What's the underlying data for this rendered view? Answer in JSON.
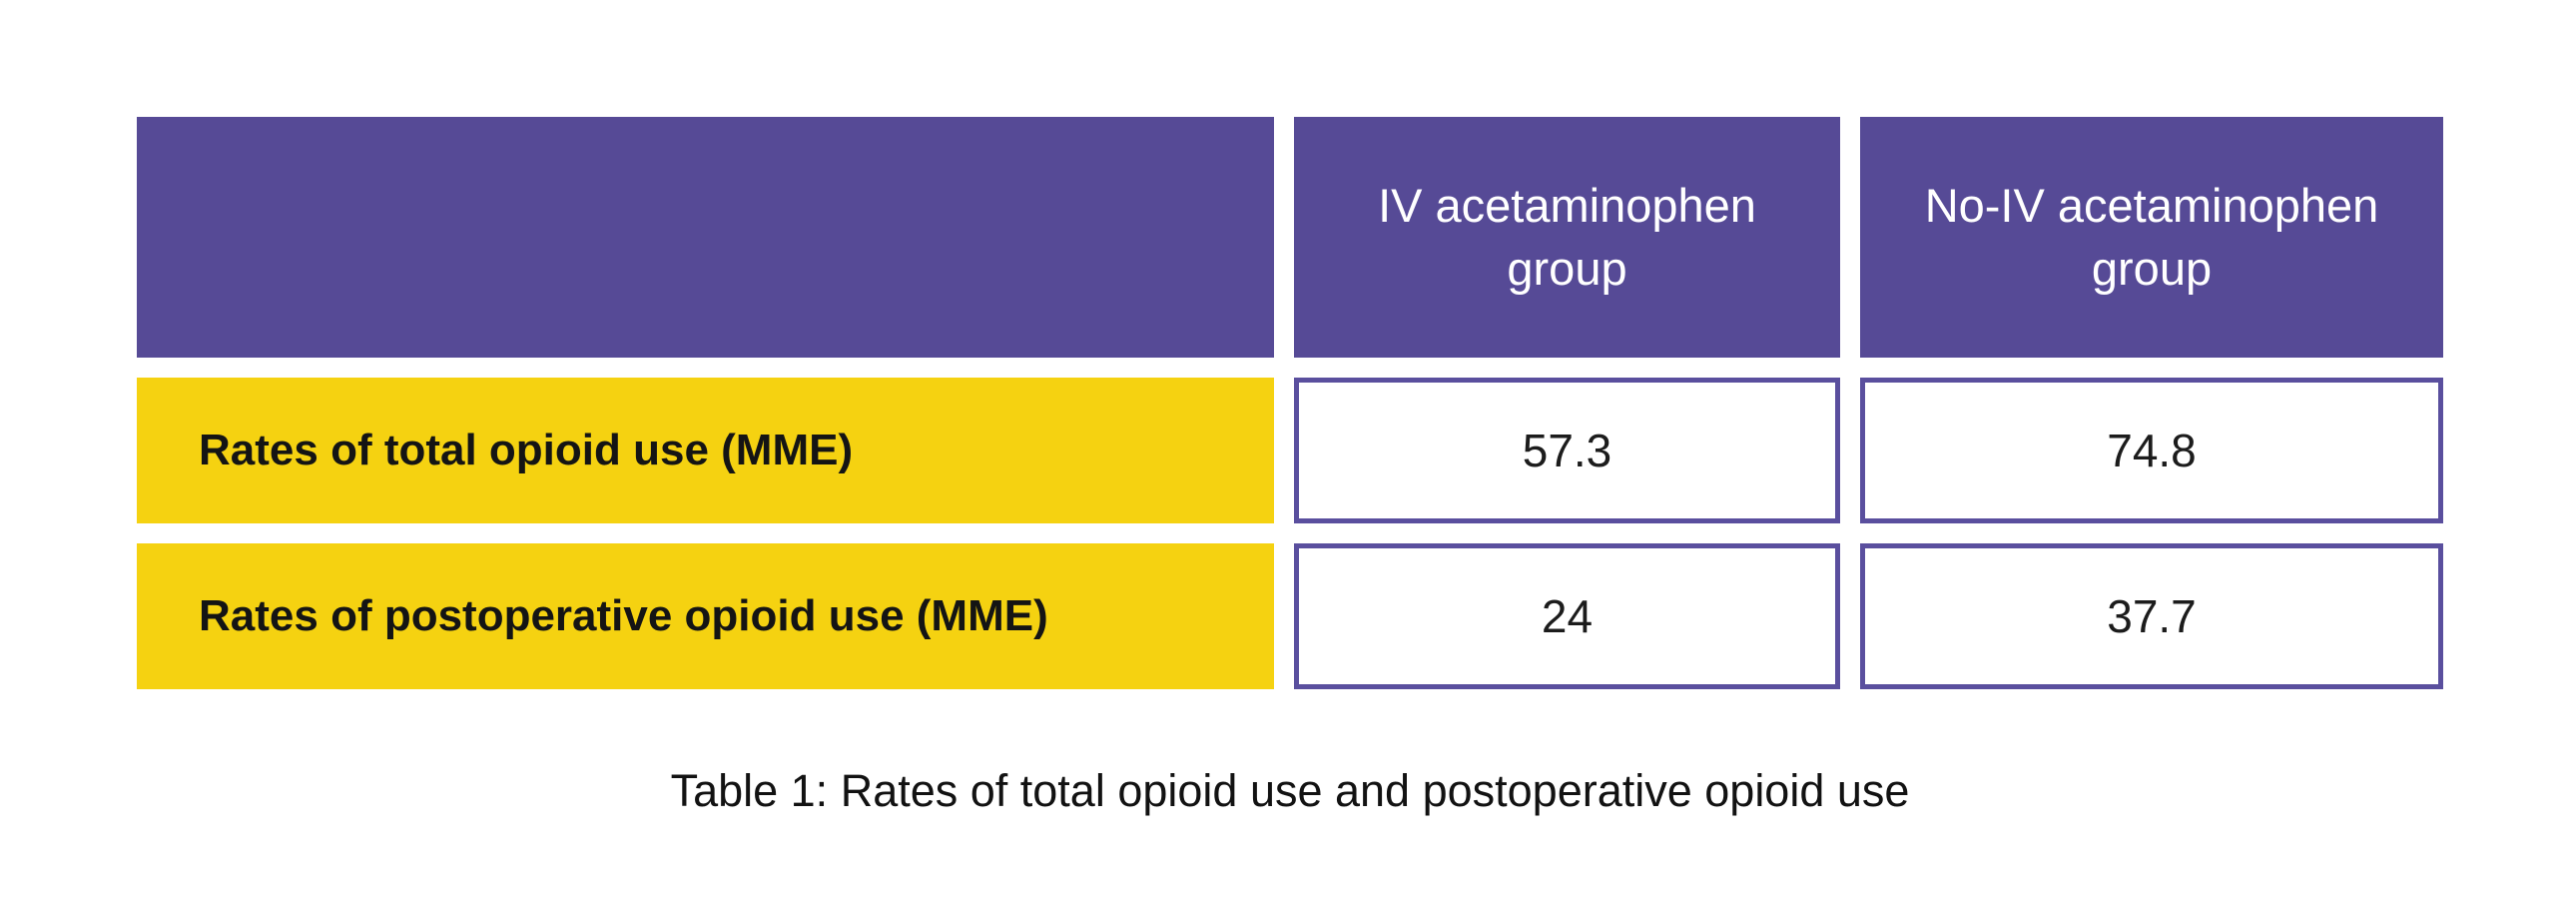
{
  "page": {
    "background": "#FFFFFF"
  },
  "colors": {
    "header_bg": "#564A96",
    "header_text": "#FFFFFF",
    "row_label_bg": "#F5D211",
    "row_label_text": "#141414",
    "value_cell_border": "#5A4F9E",
    "value_text": "#1C1C1C",
    "caption_text": "#121212"
  },
  "table": {
    "header": {
      "blank": "",
      "col1": "IV acetaminophen group",
      "col2": "No-IV acetaminophen group"
    },
    "rows": [
      {
        "label": "Rates of total opioid use (MME)",
        "values": [
          "57.3",
          "74.8"
        ]
      },
      {
        "label": "Rates of postoperative opioid use (MME)",
        "values": [
          "24",
          "37.7"
        ]
      }
    ],
    "caption": "Table 1: Rates of total opioid use and postoperative opioid use"
  },
  "chart_data": {
    "type": "table",
    "title": "Table 1: Rates of total opioid use and postoperative opioid use",
    "columns": [
      "IV acetaminophen group",
      "No-IV acetaminophen group"
    ],
    "row_labels": [
      "Rates of total opioid use (MME)",
      "Rates of postoperative opioid use (MME)"
    ],
    "series": [
      {
        "name": "IV acetaminophen group",
        "values": [
          57.3,
          24
        ]
      },
      {
        "name": "No-IV acetaminophen group",
        "values": [
          74.8,
          37.7
        ]
      }
    ],
    "units": "MME"
  }
}
